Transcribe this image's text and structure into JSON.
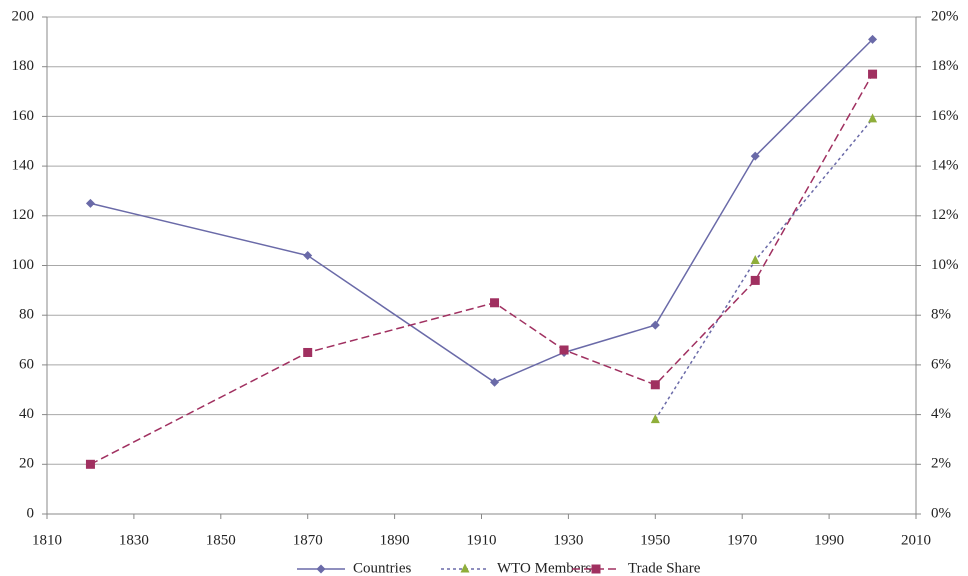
{
  "chart_data": {
    "type": "line",
    "x": [
      1820,
      1870,
      1913,
      1929,
      1950,
      1973,
      2000
    ],
    "xlim": [
      1810,
      2010
    ],
    "xticks": [
      1810,
      1830,
      1850,
      1870,
      1890,
      1910,
      1930,
      1950,
      1970,
      1990,
      2010
    ],
    "ylim": [
      0,
      200
    ],
    "yticks": [
      0,
      20,
      40,
      60,
      80,
      100,
      120,
      140,
      160,
      180,
      200
    ],
    "y2lim": [
      0,
      20
    ],
    "y2ticks": [
      {
        "value": 0,
        "label": "0%"
      },
      {
        "value": 2,
        "label": "2%"
      },
      {
        "value": 4,
        "label": "4%"
      },
      {
        "value": 6,
        "label": "6%"
      },
      {
        "value": 8,
        "label": "8%"
      },
      {
        "value": 10,
        "label": "10%"
      },
      {
        "value": 12,
        "label": "12%"
      },
      {
        "value": 14,
        "label": "14%"
      },
      {
        "value": 16,
        "label": "16%"
      },
      {
        "value": 18,
        "label": "18%"
      },
      {
        "value": 20,
        "label": "20%"
      }
    ],
    "grid": true,
    "legend": "bottom",
    "series": [
      {
        "name": "Countries",
        "color": "#6a6aa8",
        "marker": "diamond",
        "marker_color": "#6a6aa8",
        "dash": "solid",
        "values": [
          125,
          104,
          53,
          65,
          76,
          144,
          191
        ]
      },
      {
        "name": "WTO Members",
        "color": "#6a6aa8",
        "marker": "triangle",
        "marker_color": "#8fae3a",
        "dash": "dotted",
        "values": [
          null,
          null,
          null,
          null,
          38,
          102,
          159
        ]
      },
      {
        "name": "Trade Share",
        "color": "#a03060",
        "marker": "square",
        "marker_color": "#a03060",
        "dash": "dashed",
        "axis": "y2",
        "values": [
          2,
          6.5,
          8.5,
          6.6,
          5.2,
          9.4,
          17.7
        ]
      }
    ]
  }
}
